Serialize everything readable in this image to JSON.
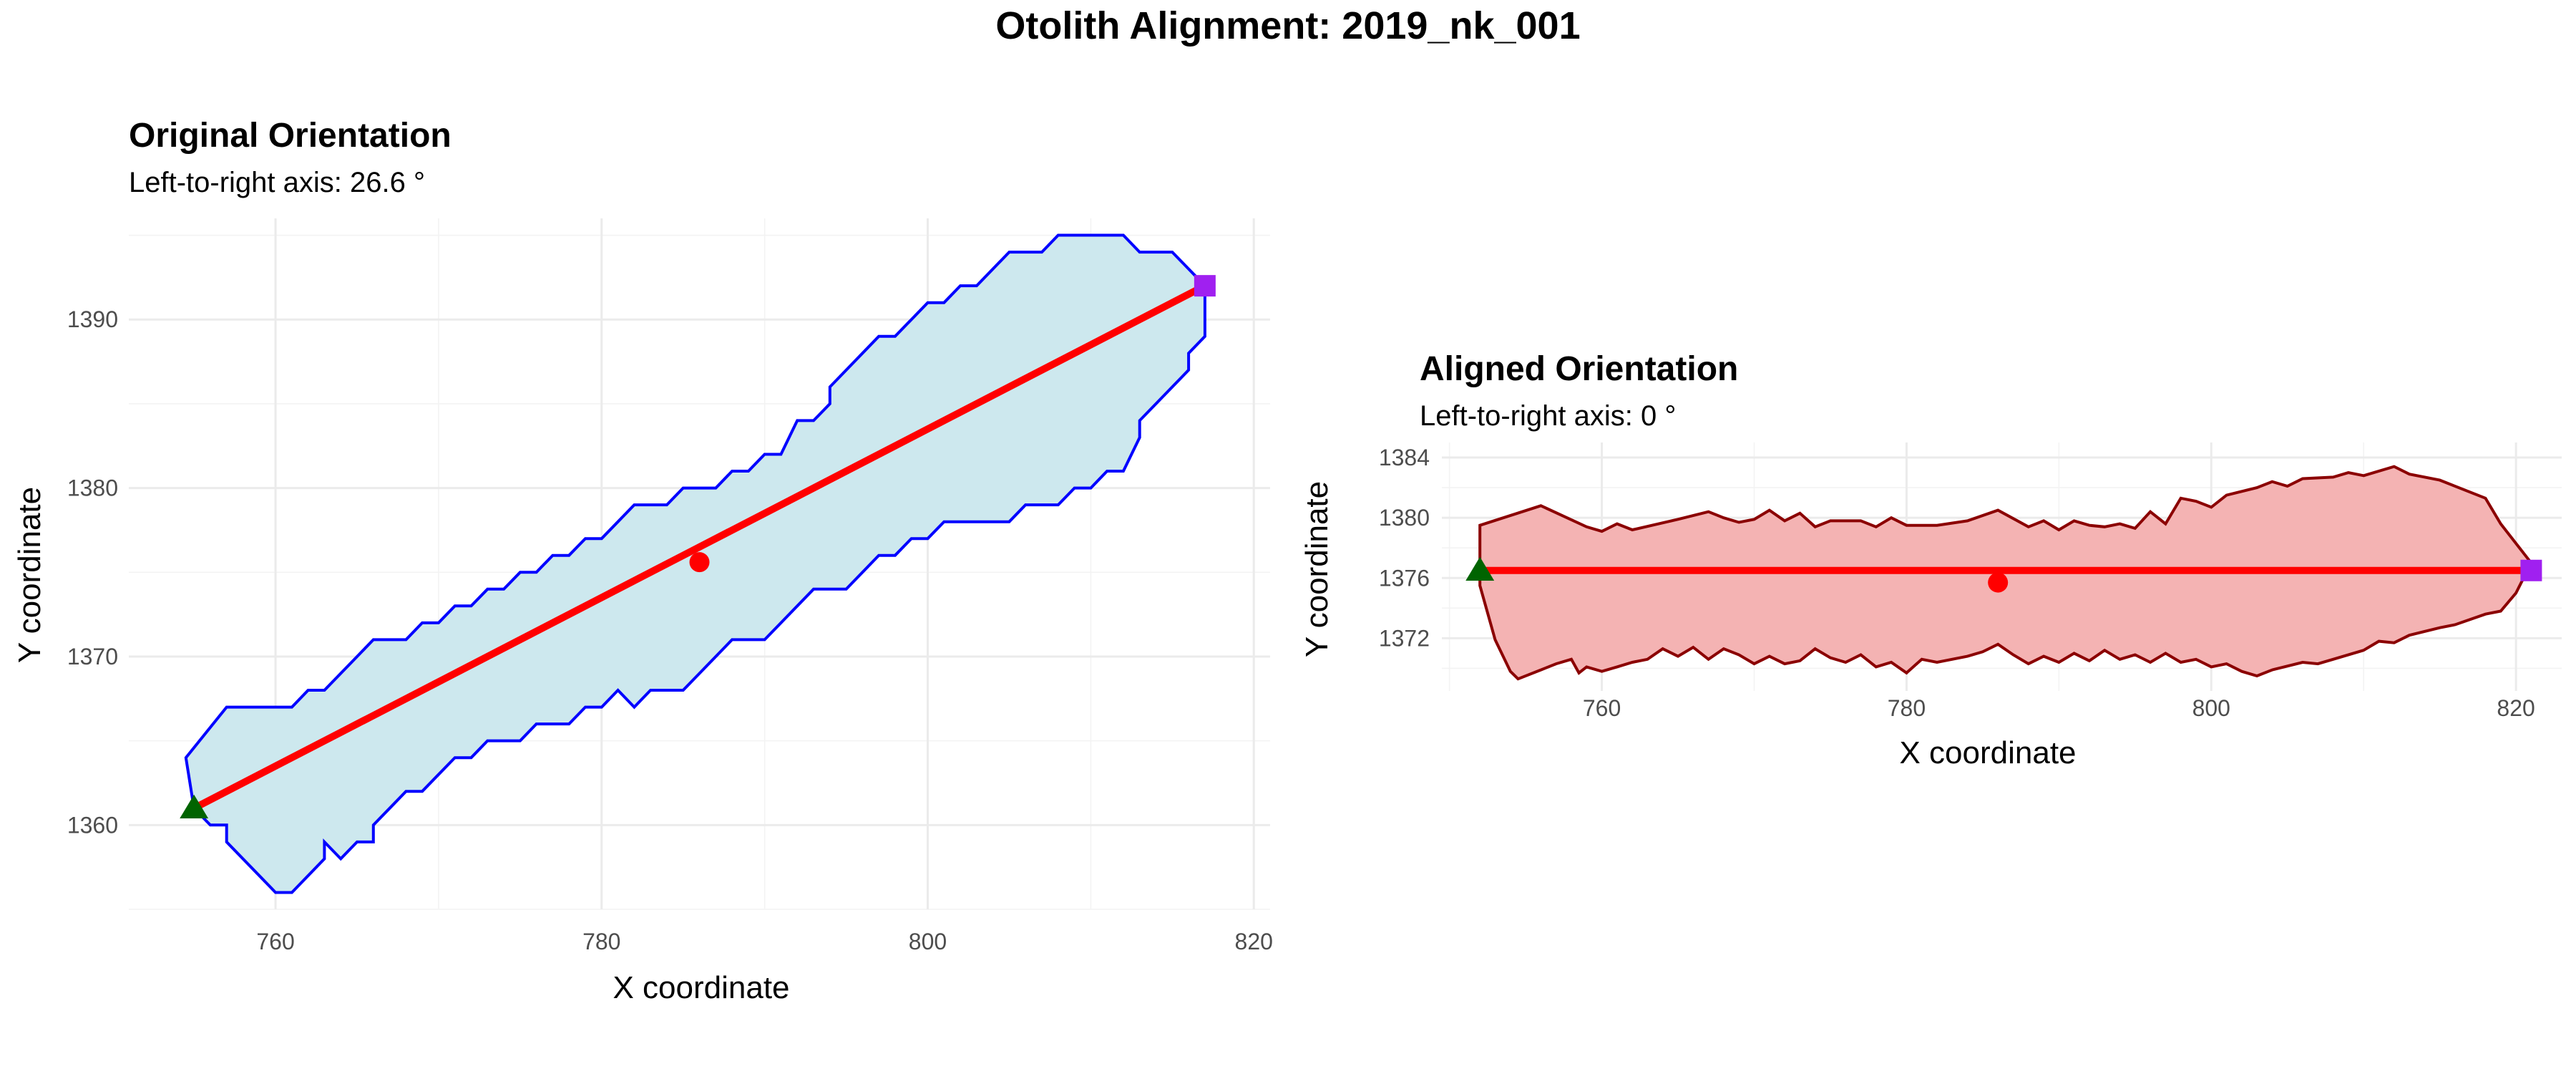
{
  "figure_title": "Otolith Alignment: 2019_nk_001",
  "chart_data": [
    {
      "type": "polygon-outline",
      "title": "Original Orientation",
      "subtitle": "Left-to-right axis: 26.6 °",
      "xlabel": "X coordinate",
      "ylabel": "Y coordinate",
      "xlim": [
        751,
        821
      ],
      "ylim": [
        1355,
        1396
      ],
      "x_major_ticks": [
        760,
        780,
        800,
        820
      ],
      "x_tick_labels": [
        "760",
        "780",
        "800",
        "820"
      ],
      "y_major_ticks": [
        1360,
        1370,
        1380,
        1390
      ],
      "y_tick_labels": [
        "1360",
        "1370",
        "1380",
        "1390"
      ],
      "x_minor_ticks": [
        770,
        790,
        810
      ],
      "y_minor_ticks": [
        1355,
        1365,
        1375,
        1385,
        1395
      ],
      "grid": true,
      "fill_color": "#cde8ee",
      "outline_color": "#0000ff",
      "outline": [
        [
          754.5,
          1364
        ],
        [
          757,
          1367
        ],
        [
          761,
          1367
        ],
        [
          762,
          1368
        ],
        [
          763,
          1368
        ],
        [
          765,
          1370
        ],
        [
          766,
          1371
        ],
        [
          768,
          1371
        ],
        [
          769,
          1372
        ],
        [
          770,
          1372
        ],
        [
          771,
          1373
        ],
        [
          772,
          1373
        ],
        [
          773,
          1374
        ],
        [
          774,
          1374
        ],
        [
          775,
          1375
        ],
        [
          776,
          1375
        ],
        [
          777,
          1376
        ],
        [
          778,
          1376
        ],
        [
          779,
          1377
        ],
        [
          780,
          1377
        ],
        [
          782,
          1379
        ],
        [
          784,
          1379
        ],
        [
          785,
          1380
        ],
        [
          787,
          1380
        ],
        [
          788,
          1381
        ],
        [
          789,
          1381
        ],
        [
          790,
          1382
        ],
        [
          791,
          1382
        ],
        [
          792,
          1384
        ],
        [
          793,
          1384
        ],
        [
          794,
          1385
        ],
        [
          794,
          1386
        ],
        [
          797,
          1389
        ],
        [
          798,
          1389
        ],
        [
          800,
          1391
        ],
        [
          801,
          1391
        ],
        [
          802,
          1392
        ],
        [
          803,
          1392
        ],
        [
          805,
          1394
        ],
        [
          807,
          1394
        ],
        [
          808,
          1395
        ],
        [
          812,
          1395
        ],
        [
          813,
          1394
        ],
        [
          815,
          1394
        ],
        [
          817,
          1392
        ],
        [
          817,
          1389
        ],
        [
          816,
          1388
        ],
        [
          816,
          1387
        ],
        [
          813,
          1384
        ],
        [
          813,
          1383
        ],
        [
          812,
          1381
        ],
        [
          811,
          1381
        ],
        [
          810,
          1380
        ],
        [
          809,
          1380
        ],
        [
          808,
          1379
        ],
        [
          806,
          1379
        ],
        [
          805,
          1378
        ],
        [
          801,
          1378
        ],
        [
          800,
          1377
        ],
        [
          799,
          1377
        ],
        [
          798,
          1376
        ],
        [
          797,
          1376
        ],
        [
          795,
          1374
        ],
        [
          793,
          1374
        ],
        [
          791,
          1372
        ],
        [
          790,
          1371
        ],
        [
          788,
          1371
        ],
        [
          786,
          1369
        ],
        [
          785,
          1368
        ],
        [
          783,
          1368
        ],
        [
          782,
          1367
        ],
        [
          781,
          1368
        ],
        [
          780,
          1367
        ],
        [
          779,
          1367
        ],
        [
          778,
          1366
        ],
        [
          776,
          1366
        ],
        [
          775,
          1365
        ],
        [
          773,
          1365
        ],
        [
          772,
          1364
        ],
        [
          771,
          1364
        ],
        [
          770,
          1363
        ],
        [
          769,
          1362
        ],
        [
          768,
          1362
        ],
        [
          767,
          1361
        ],
        [
          766,
          1360
        ],
        [
          766,
          1359
        ],
        [
          765,
          1359
        ],
        [
          764,
          1358
        ],
        [
          763,
          1359
        ],
        [
          763,
          1358
        ],
        [
          761,
          1356
        ],
        [
          760,
          1356
        ],
        [
          757,
          1359
        ],
        [
          757,
          1360
        ],
        [
          756,
          1360
        ],
        [
          755,
          1361
        ],
        [
          754.5,
          1364
        ]
      ],
      "axis_line": {
        "start": [
          755,
          1361
        ],
        "end": [
          817,
          1392
        ],
        "color": "#ff0000"
      },
      "centroid": {
        "x": 786,
        "y": 1375.6,
        "color": "#ff0000"
      },
      "start_marker": {
        "x": 755,
        "y": 1361,
        "shape": "triangle",
        "color": "#006400"
      },
      "end_marker": {
        "x": 817,
        "y": 1392,
        "shape": "square",
        "color": "#a020f0"
      }
    },
    {
      "type": "polygon-outline",
      "title": "Aligned Orientation",
      "subtitle": "Left-to-right axis: 0 °",
      "xlabel": "X coordinate",
      "ylabel": "Y coordinate",
      "xlim": [
        749.5,
        823
      ],
      "ylim": [
        1368.5,
        1385
      ],
      "x_major_ticks": [
        760,
        780,
        800,
        820
      ],
      "x_tick_labels": [
        "760",
        "780",
        "800",
        "820"
      ],
      "y_major_ticks": [
        1372,
        1376,
        1380,
        1384
      ],
      "y_tick_labels": [
        "1372",
        "1376",
        "1380",
        "1384"
      ],
      "x_minor_ticks": [
        750,
        770,
        790,
        810
      ],
      "y_minor_ticks": [
        1370,
        1374,
        1378,
        1382
      ],
      "grid": true,
      "fill_color": "#f4b3b3",
      "outline_color": "#8b0000",
      "outline": [
        [
          752,
          1379.5
        ],
        [
          756,
          1380.8
        ],
        [
          759,
          1379.4
        ],
        [
          760,
          1379.1
        ],
        [
          761,
          1379.6
        ],
        [
          762,
          1379.2
        ],
        [
          765,
          1379.9
        ],
        [
          767,
          1380.4
        ],
        [
          768,
          1380
        ],
        [
          769,
          1379.7
        ],
        [
          770,
          1379.9
        ],
        [
          771,
          1380.5
        ],
        [
          772,
          1379.8
        ],
        [
          773,
          1380.3
        ],
        [
          774,
          1379.4
        ],
        [
          775,
          1379.8
        ],
        [
          777,
          1379.8
        ],
        [
          778,
          1379.4
        ],
        [
          779,
          1380
        ],
        [
          780,
          1379.5
        ],
        [
          782,
          1379.5
        ],
        [
          784,
          1379.8
        ],
        [
          786,
          1380.5
        ],
        [
          788,
          1379.4
        ],
        [
          789,
          1379.8
        ],
        [
          790,
          1379.2
        ],
        [
          791,
          1379.8
        ],
        [
          792,
          1379.5
        ],
        [
          793,
          1379.4
        ],
        [
          794,
          1379.6
        ],
        [
          795,
          1379.3
        ],
        [
          796,
          1380.4
        ],
        [
          797,
          1379.6
        ],
        [
          798,
          1381.3
        ],
        [
          799,
          1381.1
        ],
        [
          800,
          1380.7
        ],
        [
          801,
          1381.5
        ],
        [
          803,
          1382
        ],
        [
          804,
          1382.4
        ],
        [
          805,
          1382.1
        ],
        [
          806,
          1382.6
        ],
        [
          808,
          1382.7
        ],
        [
          809,
          1383
        ],
        [
          810,
          1382.8
        ],
        [
          812,
          1383.4
        ],
        [
          813,
          1382.9
        ],
        [
          815,
          1382.5
        ],
        [
          818,
          1381.3
        ],
        [
          819,
          1379.6
        ],
        [
          821,
          1377
        ],
        [
          820,
          1375
        ],
        [
          819,
          1373.8
        ],
        [
          818,
          1373.6
        ],
        [
          816,
          1372.9
        ],
        [
          815,
          1372.7
        ],
        [
          813,
          1372.2
        ],
        [
          812,
          1371.7
        ],
        [
          811,
          1371.8
        ],
        [
          810,
          1371.2
        ],
        [
          808,
          1370.6
        ],
        [
          807,
          1370.3
        ],
        [
          806,
          1370.4
        ],
        [
          804,
          1369.9
        ],
        [
          803,
          1369.5
        ],
        [
          802,
          1369.8
        ],
        [
          801,
          1370.3
        ],
        [
          800,
          1370.1
        ],
        [
          799,
          1370.6
        ],
        [
          798,
          1370.4
        ],
        [
          797,
          1371
        ],
        [
          796,
          1370.4
        ],
        [
          795,
          1370.9
        ],
        [
          794,
          1370.6
        ],
        [
          793,
          1371.2
        ],
        [
          792,
          1370.5
        ],
        [
          791,
          1371
        ],
        [
          790,
          1370.4
        ],
        [
          789,
          1370.8
        ],
        [
          788,
          1370.3
        ],
        [
          787,
          1370.9
        ],
        [
          786,
          1371.6
        ],
        [
          785,
          1371.1
        ],
        [
          784,
          1370.8
        ],
        [
          782,
          1370.4
        ],
        [
          781,
          1370.6
        ],
        [
          780,
          1369.7
        ],
        [
          779,
          1370.4
        ],
        [
          778,
          1370.1
        ],
        [
          777,
          1370.9
        ],
        [
          776,
          1370.4
        ],
        [
          775,
          1370.7
        ],
        [
          774,
          1371.3
        ],
        [
          773,
          1370.5
        ],
        [
          772,
          1370.3
        ],
        [
          771,
          1370.8
        ],
        [
          770,
          1370.3
        ],
        [
          769,
          1370.9
        ],
        [
          768,
          1371.3
        ],
        [
          767,
          1370.6
        ],
        [
          766,
          1371.4
        ],
        [
          765,
          1370.8
        ],
        [
          764,
          1371.3
        ],
        [
          763,
          1370.6
        ],
        [
          762,
          1370.4
        ],
        [
          761,
          1370.1
        ],
        [
          760,
          1369.8
        ],
        [
          759,
          1370.1
        ],
        [
          758.5,
          1369.7
        ],
        [
          758,
          1370.6
        ],
        [
          757,
          1370.3
        ],
        [
          756,
          1369.9
        ],
        [
          754.5,
          1369.3
        ],
        [
          754,
          1369.8
        ],
        [
          753,
          1371.9
        ],
        [
          752,
          1375.5
        ],
        [
          752,
          1379.5
        ]
      ],
      "axis_line": {
        "start": [
          752,
          1376.5
        ],
        "end": [
          821,
          1376.5
        ],
        "color": "#ff0000"
      },
      "centroid": {
        "x": 786,
        "y": 1375.7,
        "color": "#ff0000"
      },
      "start_marker": {
        "x": 752,
        "y": 1376.5,
        "shape": "triangle",
        "color": "#006400"
      },
      "end_marker": {
        "x": 821,
        "y": 1376.5,
        "shape": "square",
        "color": "#a020f0"
      }
    }
  ]
}
